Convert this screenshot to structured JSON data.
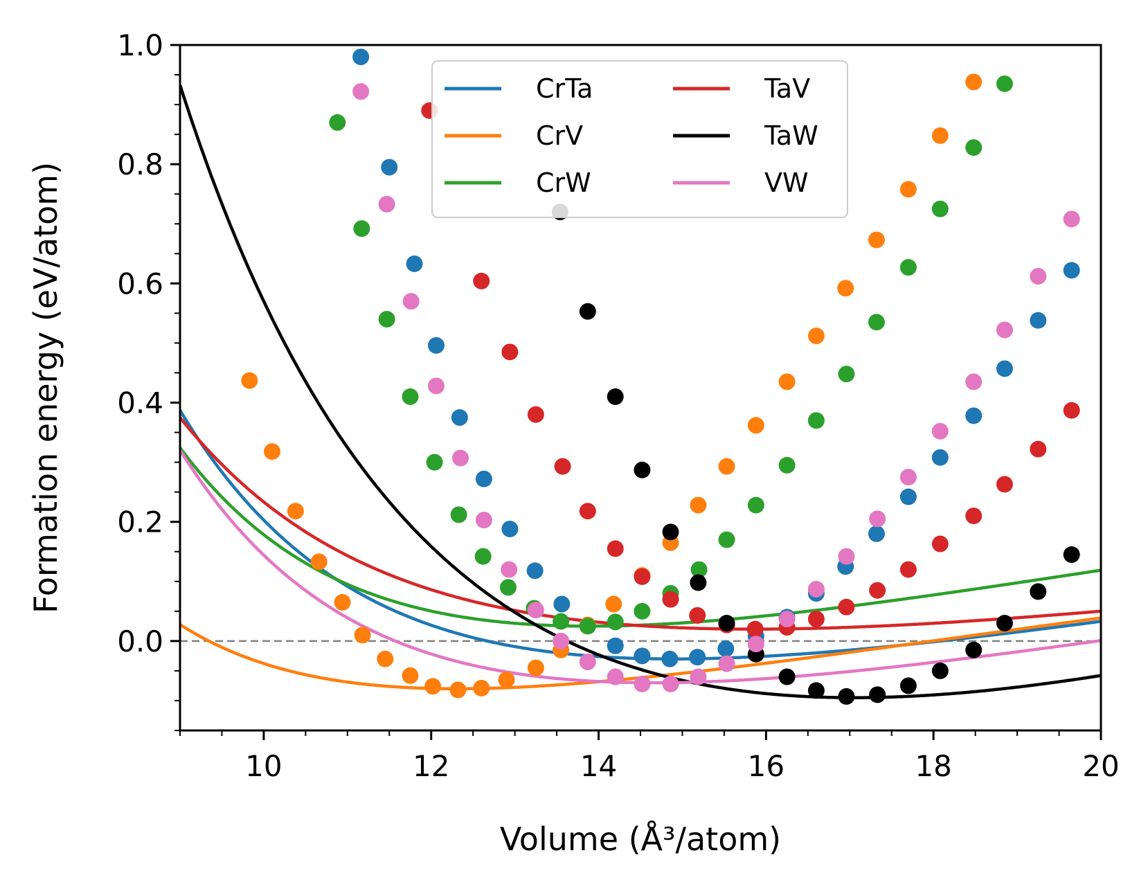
{
  "chart_data": {
    "type": "line",
    "title": "",
    "xlabel": "Volume (Å³/atom)",
    "ylabel": "Formation energy (eV/atom)",
    "xlim": [
      9.0,
      20.0
    ],
    "ylim": [
      -0.15,
      1.0
    ],
    "x_major_ticks": [
      10,
      12,
      14,
      16,
      18,
      20
    ],
    "x_tick_labels": [
      "10",
      "12",
      "14",
      "16",
      "18",
      "20"
    ],
    "x_minor_step": 0.5,
    "y_major_ticks": [
      0.0,
      0.2,
      0.4,
      0.6,
      0.8,
      1.0
    ],
    "y_tick_labels": [
      "0.0",
      "0.2",
      "0.4",
      "0.6",
      "0.8",
      "1.0"
    ],
    "y_minor_step": 0.05,
    "reference_line": {
      "y": 0.0,
      "style": "dashed",
      "color": "#808080"
    },
    "legend": {
      "position": "top-center",
      "columns": 2
    },
    "series": [
      {
        "name": "CrTa",
        "color": "#1f77b4",
        "fit": {
          "e0": -0.03,
          "v0": 14.9,
          "b0": 0.13,
          "bp": 5.0
        },
        "points": [
          [
            11.16,
            0.98
          ],
          [
            11.5,
            0.795
          ],
          [
            11.8,
            0.633
          ],
          [
            12.06,
            0.496
          ],
          [
            12.34,
            0.375
          ],
          [
            12.63,
            0.272
          ],
          [
            12.94,
            0.188
          ],
          [
            13.24,
            0.118
          ],
          [
            13.56,
            0.062
          ],
          [
            13.87,
            0.025
          ],
          [
            14.2,
            -0.008
          ],
          [
            14.52,
            -0.025
          ],
          [
            14.85,
            -0.03
          ],
          [
            15.18,
            -0.027
          ],
          [
            15.52,
            -0.013
          ],
          [
            15.88,
            0.008
          ],
          [
            16.25,
            0.04
          ],
          [
            16.6,
            0.08
          ],
          [
            16.95,
            0.125
          ],
          [
            17.32,
            0.18
          ],
          [
            17.7,
            0.242
          ],
          [
            18.08,
            0.308
          ],
          [
            18.48,
            0.378
          ],
          [
            18.85,
            0.457
          ],
          [
            19.25,
            0.538
          ],
          [
            19.65,
            0.622
          ]
        ]
      },
      {
        "name": "CrV",
        "color": "#ff7f0e",
        "fit": {
          "e0": -0.08,
          "v0": 12.3,
          "b0": 0.13,
          "bp": 5.0
        },
        "points": [
          [
            9.83,
            0.437
          ],
          [
            10.1,
            0.318
          ],
          [
            10.38,
            0.218
          ],
          [
            10.66,
            0.133
          ],
          [
            10.94,
            0.065
          ],
          [
            11.18,
            0.01
          ],
          [
            11.45,
            -0.03
          ],
          [
            11.75,
            -0.058
          ],
          [
            12.02,
            -0.076
          ],
          [
            12.32,
            -0.082
          ],
          [
            12.6,
            -0.079
          ],
          [
            12.9,
            -0.065
          ],
          [
            13.25,
            -0.045
          ],
          [
            13.55,
            -0.015
          ],
          [
            13.87,
            0.027
          ],
          [
            14.18,
            0.062
          ],
          [
            14.52,
            0.11
          ],
          [
            14.86,
            0.165
          ],
          [
            15.19,
            0.228
          ],
          [
            15.53,
            0.293
          ],
          [
            15.88,
            0.362
          ],
          [
            16.25,
            0.435
          ],
          [
            16.6,
            0.512
          ],
          [
            16.95,
            0.592
          ],
          [
            17.32,
            0.673
          ],
          [
            17.7,
            0.758
          ],
          [
            18.08,
            0.848
          ],
          [
            18.48,
            0.938
          ]
        ]
      },
      {
        "name": "CrW",
        "color": "#2ca02c",
        "fit": {
          "e0": 0.025,
          "v0": 13.9,
          "b0": 0.145,
          "bp": 5.0
        },
        "points": [
          [
            10.88,
            0.87
          ],
          [
            11.17,
            0.692
          ],
          [
            11.47,
            0.54
          ],
          [
            11.75,
            0.41
          ],
          [
            12.04,
            0.3
          ],
          [
            12.33,
            0.212
          ],
          [
            12.62,
            0.142
          ],
          [
            12.92,
            0.09
          ],
          [
            13.23,
            0.055
          ],
          [
            13.55,
            0.033
          ],
          [
            13.87,
            0.025
          ],
          [
            14.2,
            0.032
          ],
          [
            14.52,
            0.05
          ],
          [
            14.86,
            0.08
          ],
          [
            15.2,
            0.12
          ],
          [
            15.53,
            0.17
          ],
          [
            15.88,
            0.228
          ],
          [
            16.25,
            0.295
          ],
          [
            16.6,
            0.37
          ],
          [
            16.96,
            0.448
          ],
          [
            17.32,
            0.535
          ],
          [
            17.7,
            0.627
          ],
          [
            18.08,
            0.725
          ],
          [
            18.48,
            0.828
          ],
          [
            18.85,
            0.935
          ]
        ]
      },
      {
        "name": "TaV",
        "color": "#d62728",
        "fit": {
          "e0": 0.02,
          "v0": 15.85,
          "b0": 0.085,
          "bp": 4.5
        },
        "points": [
          [
            11.98,
            0.89
          ],
          [
            12.6,
            0.604
          ],
          [
            12.94,
            0.485
          ],
          [
            13.25,
            0.38
          ],
          [
            13.57,
            0.293
          ],
          [
            13.87,
            0.218
          ],
          [
            14.2,
            0.155
          ],
          [
            14.52,
            0.108
          ],
          [
            14.86,
            0.07
          ],
          [
            15.18,
            0.043
          ],
          [
            15.53,
            0.027
          ],
          [
            15.87,
            0.02
          ],
          [
            16.25,
            0.023
          ],
          [
            16.6,
            0.037
          ],
          [
            16.96,
            0.057
          ],
          [
            17.33,
            0.085
          ],
          [
            17.7,
            0.12
          ],
          [
            18.08,
            0.163
          ],
          [
            18.48,
            0.21
          ],
          [
            18.85,
            0.263
          ],
          [
            19.25,
            0.322
          ],
          [
            19.65,
            0.387
          ]
        ]
      },
      {
        "name": "TaW",
        "color": "#000000",
        "fit": {
          "e0": -0.095,
          "v0": 17.05,
          "b0": 0.19,
          "bp": 4.0
        },
        "points": [
          [
            13.54,
            0.72
          ],
          [
            13.87,
            0.553
          ],
          [
            14.2,
            0.41
          ],
          [
            14.52,
            0.287
          ],
          [
            14.86,
            0.183
          ],
          [
            15.19,
            0.098
          ],
          [
            15.53,
            0.03
          ],
          [
            15.88,
            -0.022
          ],
          [
            16.25,
            -0.06
          ],
          [
            16.6,
            -0.083
          ],
          [
            16.96,
            -0.093
          ],
          [
            17.33,
            -0.09
          ],
          [
            17.7,
            -0.075
          ],
          [
            18.08,
            -0.05
          ],
          [
            18.48,
            -0.015
          ],
          [
            18.85,
            0.03
          ],
          [
            19.25,
            0.083
          ],
          [
            19.65,
            0.145
          ]
        ]
      },
      {
        "name": "VW",
        "color": "#e377c2",
        "fit": {
          "e0": -0.07,
          "v0": 14.65,
          "b0": 0.135,
          "bp": 5.0
        },
        "points": [
          [
            11.16,
            0.922
          ],
          [
            11.47,
            0.733
          ],
          [
            11.76,
            0.57
          ],
          [
            12.06,
            0.428
          ],
          [
            12.35,
            0.307
          ],
          [
            12.63,
            0.203
          ],
          [
            12.93,
            0.12
          ],
          [
            13.25,
            0.052
          ],
          [
            13.55,
            0.0
          ],
          [
            13.87,
            -0.035
          ],
          [
            14.2,
            -0.06
          ],
          [
            14.52,
            -0.072
          ],
          [
            14.86,
            -0.072
          ],
          [
            15.19,
            -0.06
          ],
          [
            15.53,
            -0.038
          ],
          [
            15.88,
            -0.005
          ],
          [
            16.25,
            0.037
          ],
          [
            16.6,
            0.087
          ],
          [
            16.96,
            0.142
          ],
          [
            17.33,
            0.205
          ],
          [
            17.7,
            0.275
          ],
          [
            18.08,
            0.352
          ],
          [
            18.48,
            0.435
          ],
          [
            18.85,
            0.522
          ],
          [
            19.25,
            0.612
          ],
          [
            19.65,
            0.708
          ]
        ]
      }
    ]
  }
}
